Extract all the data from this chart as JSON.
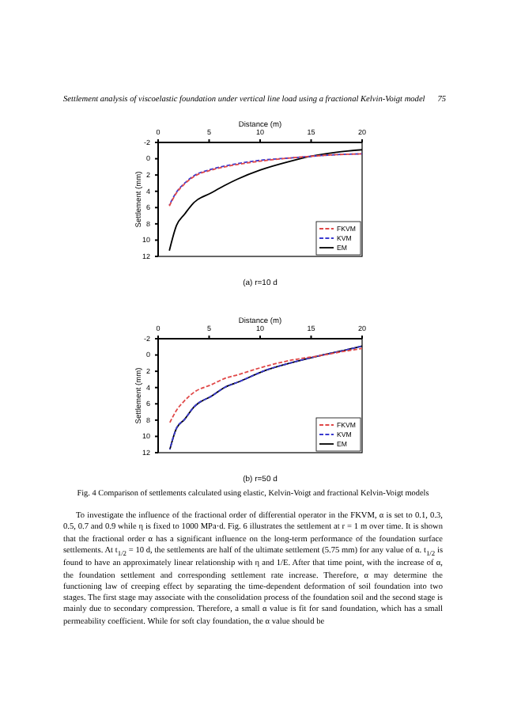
{
  "chart_data": [
    {
      "type": "line",
      "title": "(a) r=10 d",
      "xlabel": "Distance (m)",
      "ylabel": "Settlement (mm)",
      "x": [
        1.1,
        1.8,
        2.6,
        3.5,
        5.2,
        6.5,
        7.8,
        10,
        13,
        15,
        17.5,
        20
      ],
      "series": [
        {
          "name": "FKVM",
          "color": "#e04848",
          "line_style": "dashed",
          "values": [
            5.8,
            4.2,
            3.1,
            2.2,
            1.4,
            1.0,
            0.7,
            0.3,
            -0.1,
            -0.3,
            -0.5,
            -0.6
          ]
        },
        {
          "name": "KVM",
          "color": "#3a3ad0",
          "line_style": "dashed",
          "values": [
            5.7,
            4.1,
            3.0,
            2.1,
            1.3,
            0.9,
            0.6,
            0.2,
            -0.1,
            -0.3,
            -0.5,
            -0.6
          ]
        },
        {
          "name": "EM",
          "color": "#000000",
          "line_style": "solid",
          "values": [
            11.3,
            8.2,
            6.8,
            5.4,
            4.2,
            3.3,
            2.5,
            1.4,
            0.3,
            -0.3,
            -0.8,
            -1.1
          ]
        }
      ],
      "xlim": [
        0,
        20
      ],
      "xticks": [
        0,
        5,
        10,
        15,
        20
      ],
      "ylim": [
        12,
        -2
      ],
      "yticks": [
        -2,
        0,
        2,
        4,
        6,
        8,
        10,
        12
      ],
      "legend": "bottom right",
      "grid": false,
      "annotations": [
        "Settlement analysis of viscoelastic foundation under vertical line load using a fractional Kelvin-Voigt model",
        "75"
      ]
    },
    {
      "type": "line",
      "title": "(b) r=50 d",
      "xlabel": "Distance (m)",
      "ylabel": "Settlement (mm)",
      "x": [
        1.15,
        1.8,
        2.6,
        3.5,
        5.3,
        6.5,
        7.9,
        10.5,
        13.2,
        15.8,
        18,
        20
      ],
      "series": [
        {
          "name": "FKVM",
          "color": "#e04848",
          "line_style": "dashed",
          "values": [
            8.3,
            6.8,
            5.6,
            4.6,
            3.6,
            2.9,
            2.4,
            1.4,
            0.6,
            0.1,
            -0.4,
            -0.8
          ]
        },
        {
          "name": "KVM",
          "color": "#3a3ad0",
          "line_style": "dashed",
          "values": [
            11.6,
            9.0,
            7.9,
            6.4,
            5.0,
            4.0,
            3.3,
            1.9,
            0.9,
            0.1,
            -0.5,
            -1.1
          ]
        },
        {
          "name": "EM",
          "color": "#000000",
          "line_style": "solid",
          "values": [
            11.6,
            9.0,
            7.9,
            6.4,
            5.0,
            4.0,
            3.3,
            1.9,
            0.9,
            0.1,
            -0.5,
            -1.1
          ]
        }
      ],
      "xlim": [
        0,
        20
      ],
      "xticks": [
        0,
        5,
        10,
        15,
        20
      ],
      "ylim": [
        12,
        -2
      ],
      "yticks": [
        -2,
        0,
        2,
        4,
        6,
        8,
        10,
        12
      ],
      "legend": "bottom right",
      "grid": false,
      "annotations": [
        "Fig. 4 Comparison of settlements calculated using elastic, Kelvin-Voigt and fractional Kelvin-Voigt models",
        "To investigate the influence of the fractional order of differential operator in the FKVM, α is set to 0.1, 0.3, 0.5, 0.7 and 0.9 while η is fixed to 1000 MPa·d. Fig. 6 illustrates the settlement at r = 1 m over time. It is shown that the fractional order α has a significant influence on the long-term performance of the foundation surface settlements. At t$_{1/2}$ = 10 d, the settlements are half of the ultimate settlement (5.75 mm) for any value of α. t$_{1/2}$ is found to have an approximately linear relationship with η and 1/E. After that time point, with the increase of α, the foundation settlement and corresponding settlement rate increase. Therefore, α may determine the functioning law of creeping effect by separating the time-dependent deformation of soil foundation into two stages. The first stage may associate with the consolidation process of the foundation soil and the second stage is mainly due to secondary compression. Therefore, a small α value is fit for sand foundation, which has a small permeability coefficient. While for soft clay foundation, the α value should be"
      ]
    }
  ]
}
